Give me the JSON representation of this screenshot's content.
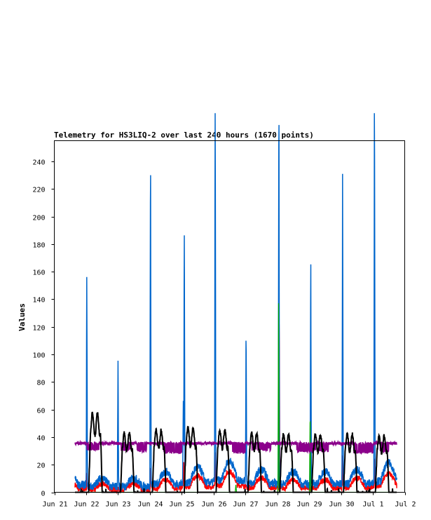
{
  "chart_data": {
    "type": "line",
    "title": "Telemetry for HS3LIQ-2 over last 240 hours (1670 points)",
    "xlabel": "",
    "ylabel": "Values",
    "x_ticks": [
      "Jun 21",
      "Jun 22",
      "Jun 23",
      "Jun 24",
      "Jun 25",
      "Jun 26",
      "Jun 27",
      "Jun 28",
      "Jun 29",
      "Jun 30",
      "Jul 1",
      "Jul 2"
    ],
    "xlim_days": [
      0,
      11
    ],
    "ylim": [
      0,
      255
    ],
    "y_ticks": [
      0,
      20,
      40,
      60,
      80,
      100,
      120,
      140,
      160,
      180,
      200,
      220,
      240
    ],
    "grid": false,
    "legend": "none",
    "data_start_day": 0.65,
    "data_end_day": 10.75,
    "series": [
      {
        "color": "#8b008b",
        "baseline": 35,
        "dips": [
          [
            1.0,
            1.4,
            30
          ],
          [
            2.1,
            2.4,
            30
          ],
          [
            2.6,
            2.9,
            29
          ],
          [
            3.4,
            4.0,
            28
          ],
          [
            5.6,
            6.0,
            28
          ],
          [
            6.2,
            6.8,
            30
          ],
          [
            7.6,
            8.2,
            29
          ],
          [
            8.3,
            8.6,
            29
          ],
          [
            9.4,
            10.0,
            28
          ],
          [
            10.2,
            10.5,
            29
          ]
        ]
      },
      {
        "color": "#000000",
        "day_peak": [
          58,
          43,
          45,
          47,
          45,
          43,
          42,
          42,
          42,
          41
        ],
        "night_low": 0
      },
      {
        "color": "#0066cc",
        "base_level": [
          8,
          6,
          6,
          9,
          11,
          14,
          10,
          9,
          9,
          10,
          13
        ],
        "spikes": [
          [
            1.02,
            156
          ],
          [
            2.0,
            92
          ],
          [
            3.02,
            255
          ],
          [
            4.05,
            65
          ],
          [
            4.08,
            190
          ],
          [
            5.05,
            300
          ],
          [
            6.02,
            118
          ],
          [
            7.05,
            300
          ],
          [
            8.05,
            170
          ],
          [
            9.05,
            230
          ],
          [
            10.05,
            300
          ]
        ]
      },
      {
        "color": "#ff0000",
        "base_level": [
          5,
          4,
          4,
          6,
          8,
          10,
          7,
          6,
          6,
          7,
          9
        ],
        "spikes": [
          [
            1.03,
            14
          ],
          [
            3.03,
            18
          ],
          [
            4.06,
            20
          ],
          [
            5.06,
            24
          ],
          [
            7.06,
            130
          ],
          [
            9.06,
            25
          ],
          [
            10.06,
            20
          ]
        ]
      },
      {
        "color": "#00aa00",
        "spikes": [
          [
            5.7,
            6
          ],
          [
            7.04,
            140
          ],
          [
            8.03,
            60
          ]
        ]
      }
    ]
  }
}
